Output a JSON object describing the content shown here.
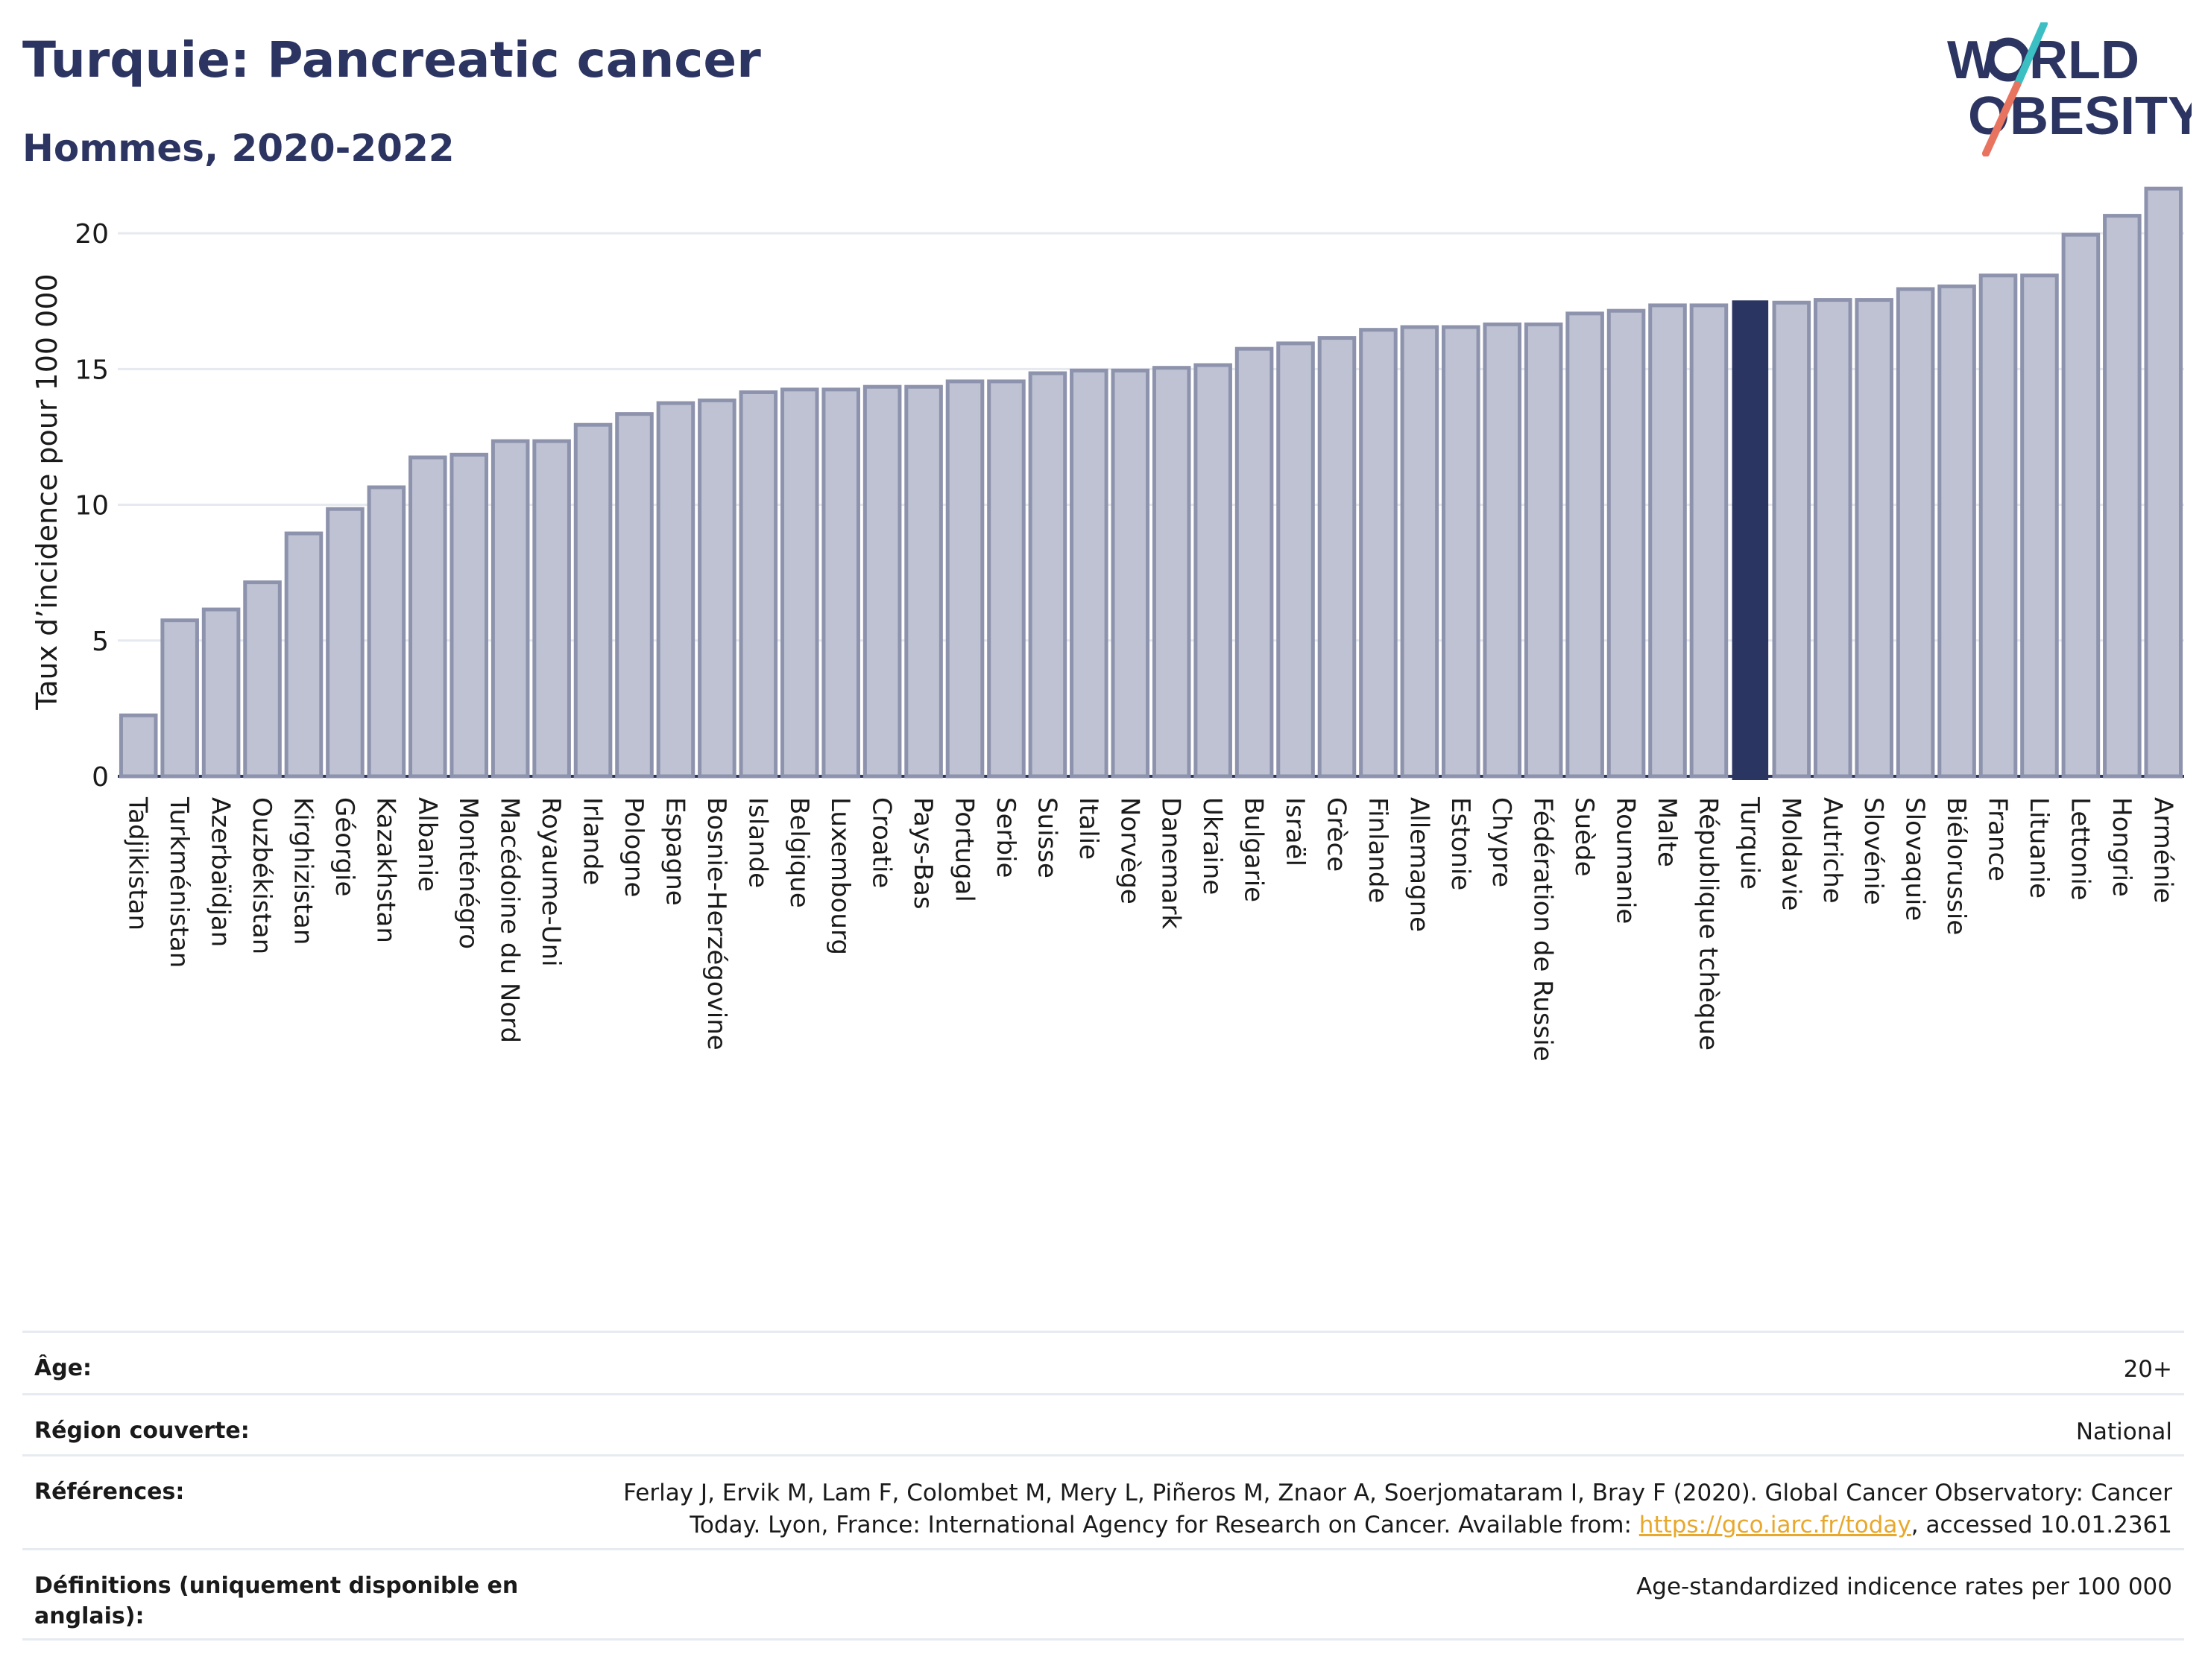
{
  "header": {
    "title": "Turquie: Pancreatic cancer",
    "subtitle": "Hommes, 2020-2022"
  },
  "logo": {
    "line1": "W",
    "line1b": "RLD",
    "line2": "OBESITY"
  },
  "colors": {
    "bar": "#bec2d2",
    "bar_stroke": "#8e93ad",
    "highlight": "#2a3561",
    "text": "#2c3561",
    "grid": "#e6e9ef",
    "logo_teal": "#3bbfc3",
    "logo_coral": "#e8735f",
    "link": "#e8a82b"
  },
  "chart_data": {
    "type": "bar",
    "ylabel": "Taux d’incidence pour 100 000",
    "ylim": [
      0,
      22.5
    ],
    "yticks": [
      0,
      5,
      10,
      15,
      20
    ],
    "grid": true,
    "highlight": "Turquie",
    "categories": [
      "Tadjikistan",
      "Turkménistan",
      "Azerbaïdjan",
      "Ouzbékistan",
      "Kirghizistan",
      "Géorgie",
      "Kazakhstan",
      "Albanie",
      "Monténégro",
      "Macédoine du Nord",
      "Royaume-Uni",
      "Irlande",
      "Pologne",
      "Espagne",
      "Bosnie-Herzégovine",
      "Islande",
      "Belgique",
      "Luxembourg",
      "Croatie",
      "Pays-Bas",
      "Portugal",
      "Serbie",
      "Suisse",
      "Italie",
      "Norvège",
      "Danemark",
      "Ukraine",
      "Bulgarie",
      "Israël",
      "Grèce",
      "Finlande",
      "Allemagne",
      "Estonie",
      "Chypre",
      "Fédération de Russie",
      "Suède",
      "Roumanie",
      "Malte",
      "République tchèque",
      "Turquie",
      "Moldavie",
      "Autriche",
      "Slovénie",
      "Slovaquie",
      "Biélorussie",
      "France",
      "Lituanie",
      "Lettonie",
      "Hongrie",
      "Arménie"
    ],
    "values": [
      2.3,
      5.8,
      6.2,
      7.2,
      9.0,
      9.9,
      10.7,
      11.8,
      11.9,
      12.4,
      12.4,
      13.0,
      13.4,
      13.8,
      13.9,
      14.2,
      14.3,
      14.3,
      14.4,
      14.4,
      14.6,
      14.6,
      14.9,
      15.0,
      15.0,
      15.1,
      15.2,
      15.8,
      16.0,
      16.2,
      16.5,
      16.6,
      16.6,
      16.7,
      16.7,
      17.1,
      17.2,
      17.4,
      17.4,
      17.5,
      17.5,
      17.6,
      17.6,
      18.0,
      18.1,
      18.5,
      18.5,
      20.0,
      20.7,
      21.7
    ]
  },
  "info": {
    "age_label": "Âge:",
    "age_value": "20+",
    "region_label": "Région couverte:",
    "region_value": "National",
    "refs_label": "Références:",
    "refs_text_1": "Ferlay J, Ervik M, Lam F, Colombet M, Mery L, Piñeros M, Znaor A, Soerjomataram I, Bray F (2020). Global Cancer Observatory: Cancer",
    "refs_text_2": "Today. Lyon, France: International Agency for Research on Cancer. Available from: ",
    "refs_link": "https://gco.iarc.fr/today",
    "refs_text_3": ", accessed 10.01.2361",
    "defs_label": "Définitions (uniquement disponible en anglais):",
    "defs_value": "Age-standardized indicence rates per 100 000"
  }
}
